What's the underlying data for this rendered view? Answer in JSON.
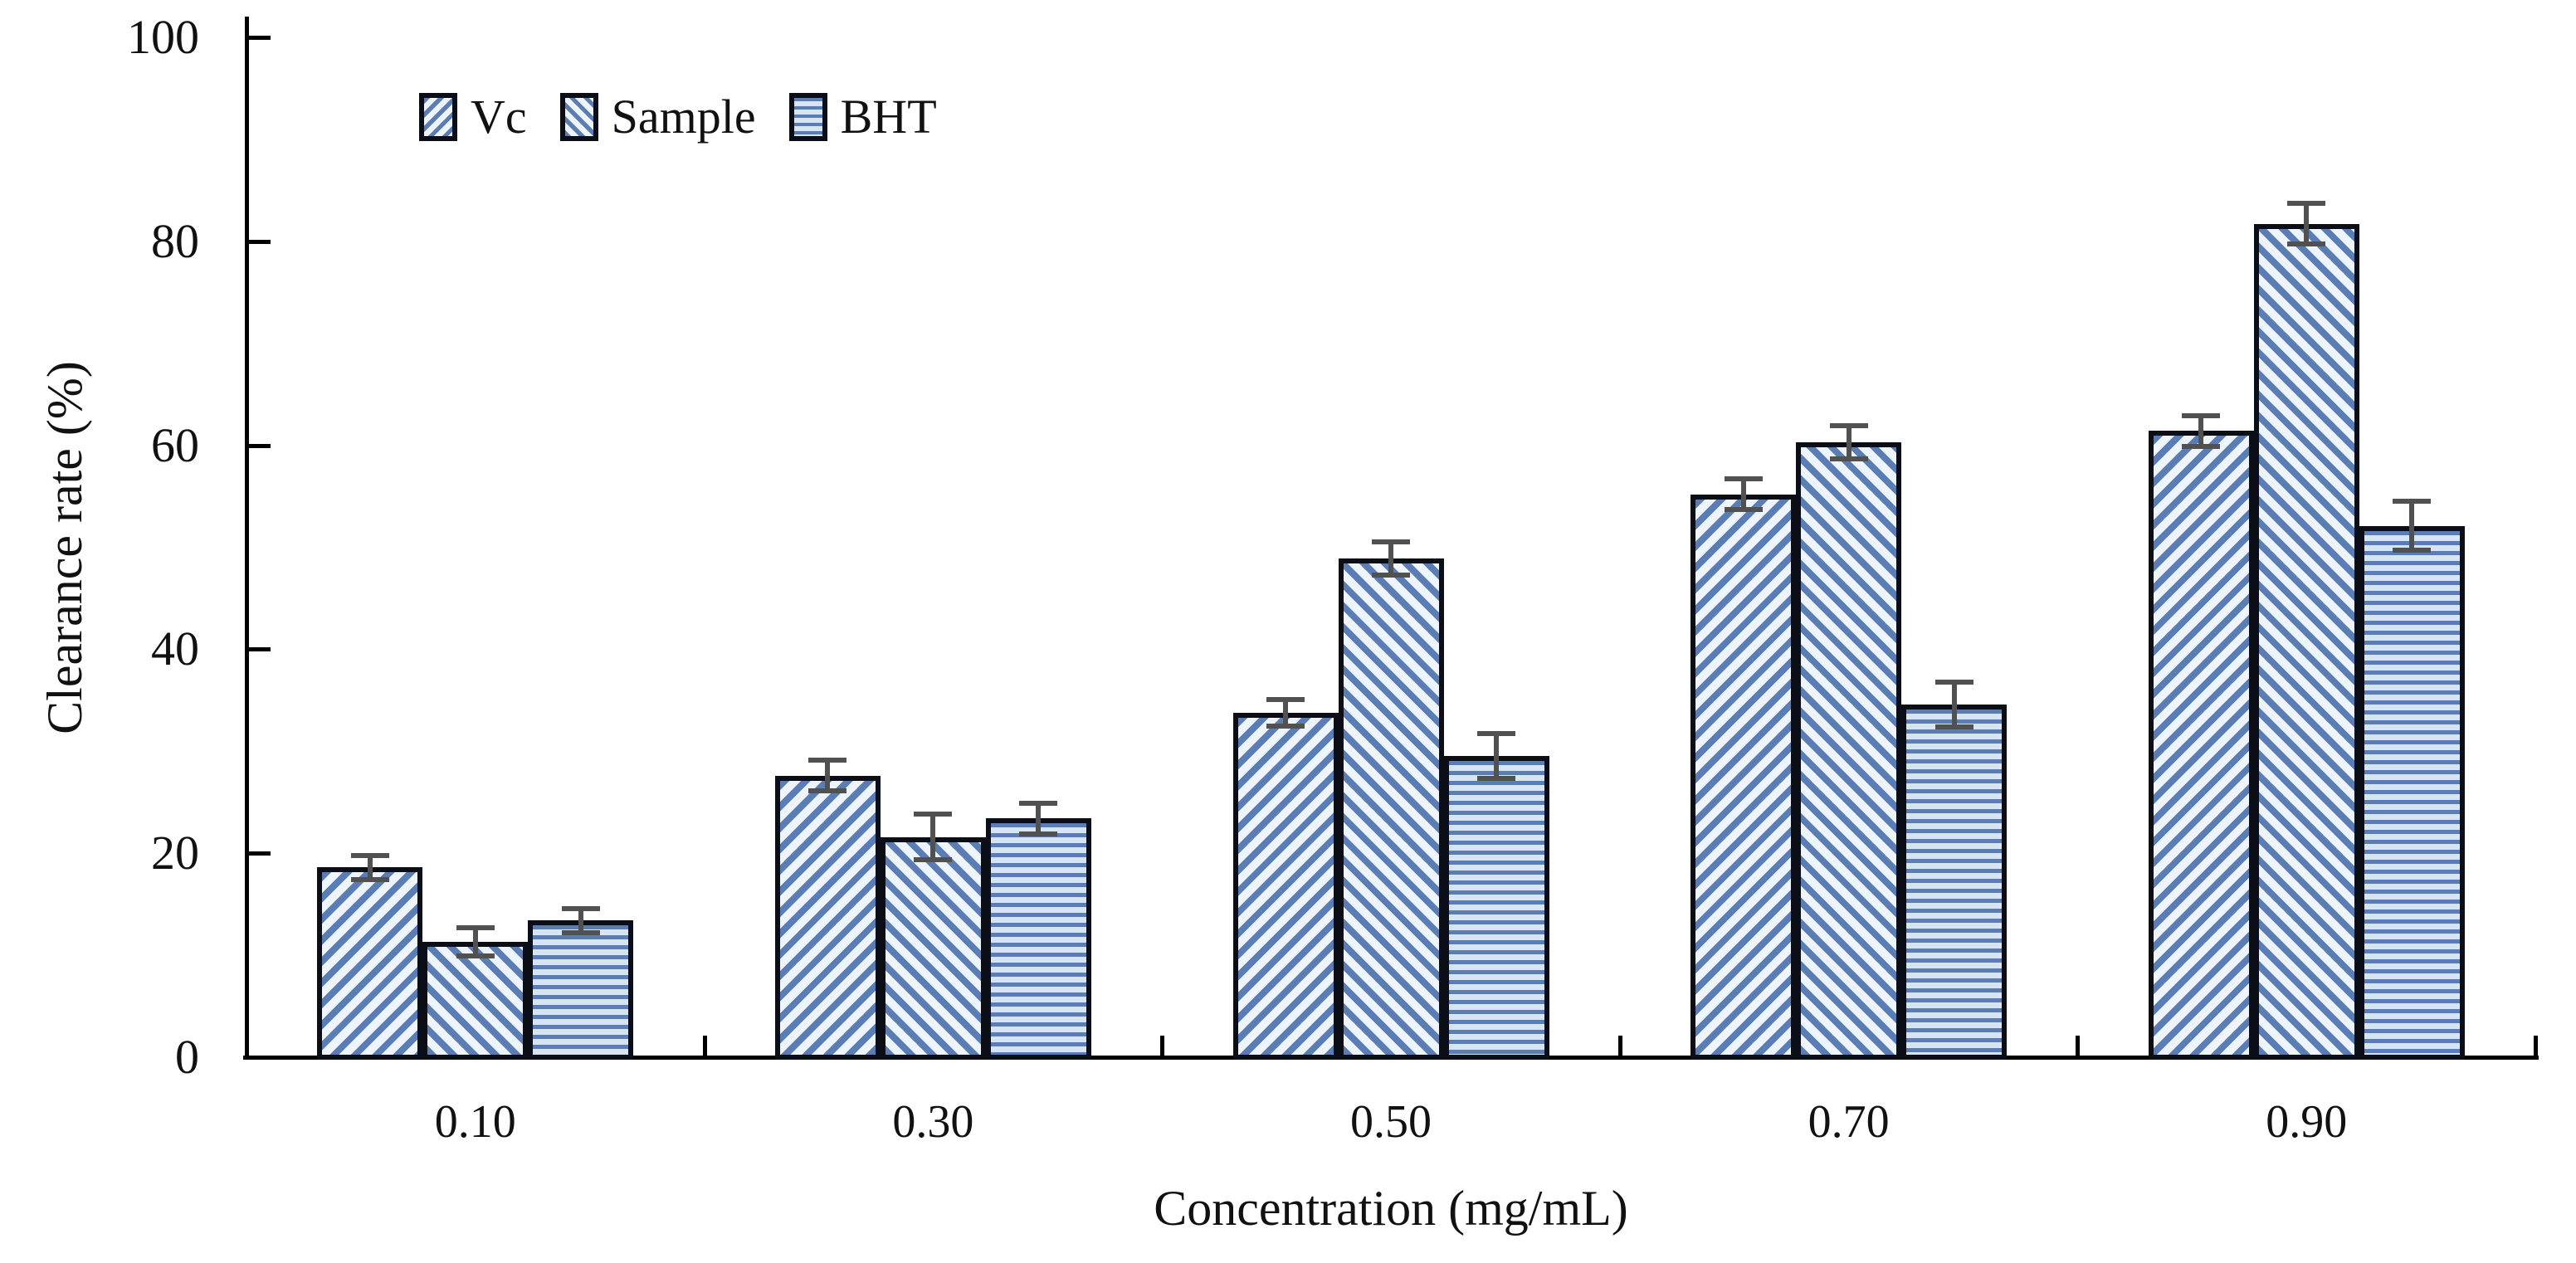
{
  "chart_data": {
    "type": "bar",
    "title": "",
    "xlabel": "Concentration (mg/mL)",
    "ylabel": "Clearance rate (%)",
    "categories": [
      "0.10",
      "0.30",
      "0.50",
      "0.70",
      "0.90"
    ],
    "series": [
      {
        "name": "Vc",
        "hatch": "diagonal-up",
        "values": [
          18.6,
          27.6,
          33.8,
          55.2,
          61.4
        ],
        "errors": [
          1.2,
          1.5,
          1.3,
          1.5,
          1.5
        ]
      },
      {
        "name": "Sample",
        "hatch": "diagonal-down",
        "values": [
          11.3,
          21.6,
          48.9,
          60.3,
          81.7
        ],
        "errors": [
          1.4,
          2.2,
          1.6,
          1.6,
          2.0
        ]
      },
      {
        "name": "BHT",
        "hatch": "horizontal",
        "values": [
          13.4,
          23.4,
          29.5,
          34.6,
          52.1
        ],
        "errors": [
          1.2,
          1.5,
          2.2,
          2.2,
          2.4
        ]
      }
    ],
    "y_ticks": [
      "0",
      "20",
      "40",
      "60",
      "80",
      "100"
    ],
    "ylim": [
      0,
      100
    ],
    "grid": false,
    "error_bars": true,
    "legend_position": "top-inset",
    "legend_entries": [
      "Vc",
      "Sample",
      "BHT"
    ]
  },
  "colors": {
    "hatch_blue": "#5b7db5",
    "hatch_light": "#eef4fb",
    "bht_light": "#d7e5f3",
    "bar_border": "#0b0e16",
    "error_bar": "#515151",
    "axis": "#000000"
  }
}
